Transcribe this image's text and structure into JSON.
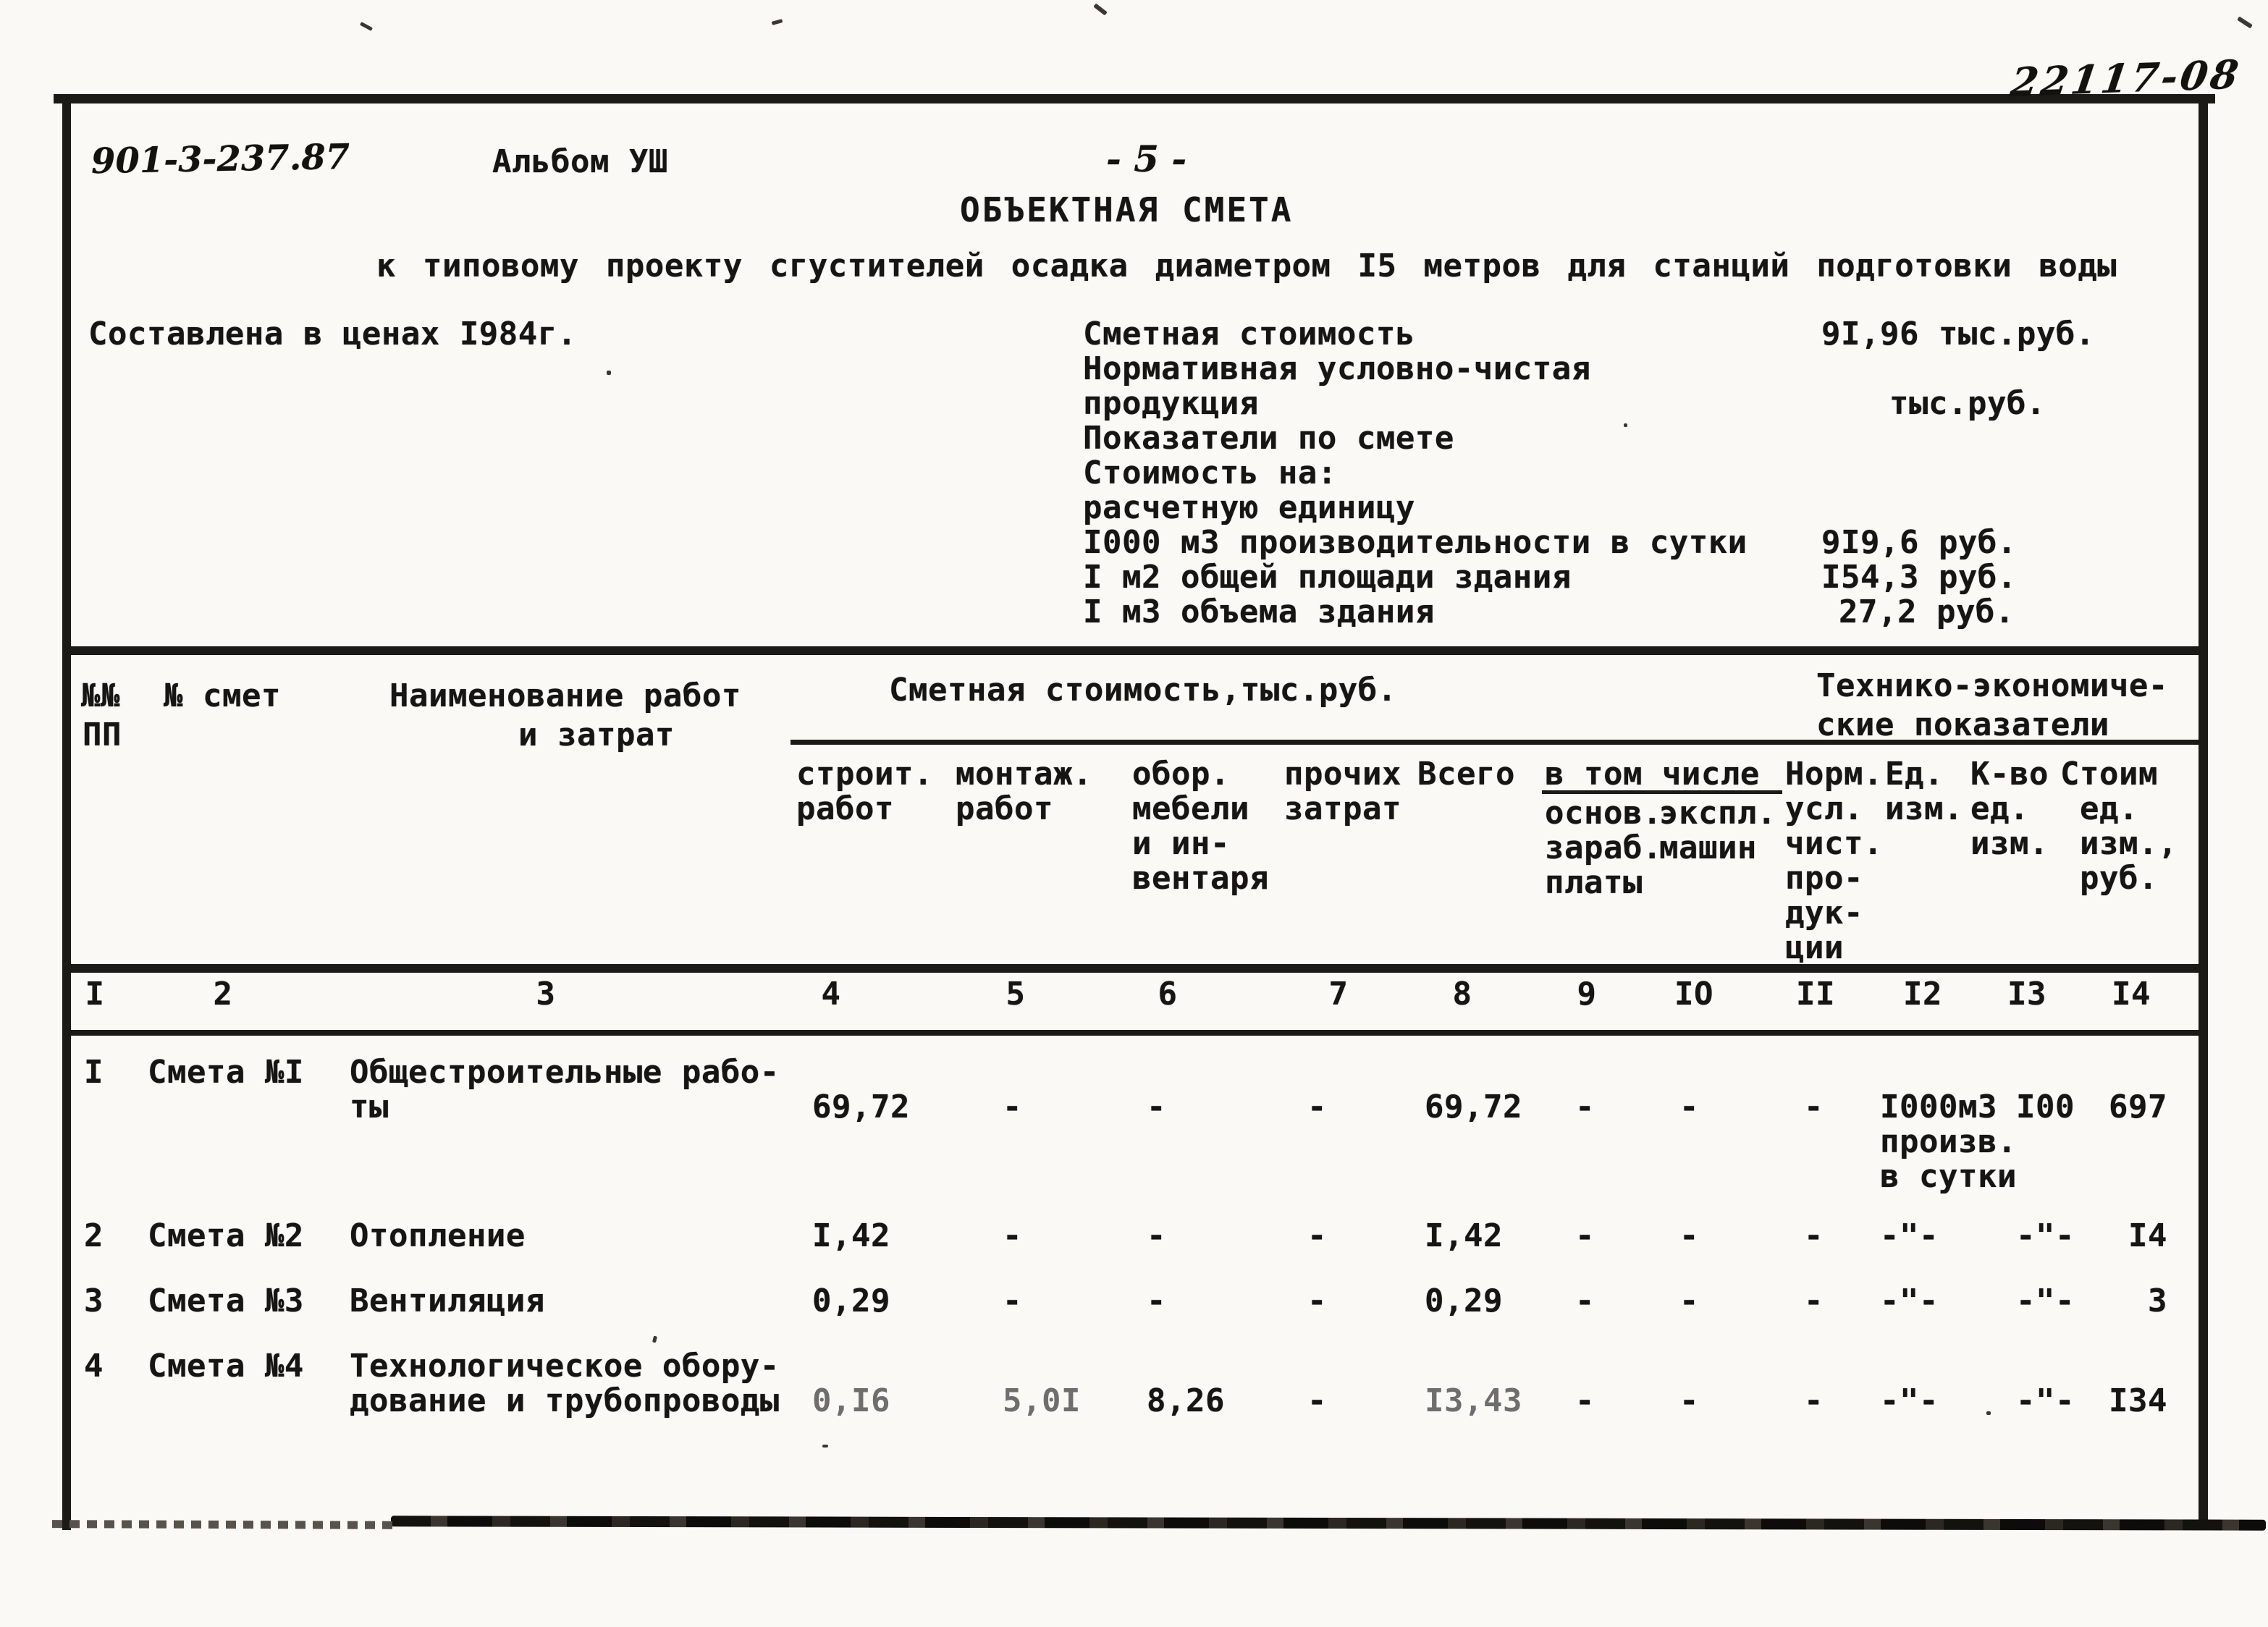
{
  "page": {
    "doc_number": "901-3-237.87",
    "album": "Альбом УШ",
    "page_number": "- 5 -",
    "stamp": "22117-08",
    "title": "ОБЪЕКТНАЯ СМЕТА",
    "subtitle": "к типовому проекту сгустителей осадка диаметром I5 метров для станций подготовки воды",
    "prices_note": "Составлена в ценах I984г."
  },
  "summary": {
    "items": [
      {
        "label": "Сметная стоимость",
        "value": "9I,96 тыс.руб."
      },
      {
        "label": "Нормативная условно-чистая",
        "value": ""
      },
      {
        "label": "продукция",
        "value": "тыс.руб."
      },
      {
        "label": "Показатели по смете",
        "value": ""
      },
      {
        "label": "Стоимость на:",
        "value": ""
      },
      {
        "label": "расчетную единицу",
        "value": ""
      },
      {
        "label": "I000 м3 производительности в сутки",
        "value": "9I9,6 руб."
      },
      {
        "label": "I м2 общей площади здания",
        "value": "I54,3 руб."
      },
      {
        "label": "I м3 объема здания",
        "value": "27,2 руб."
      }
    ]
  },
  "table": {
    "head": {
      "col1_line1": "№№",
      "col1_line2": "ПП",
      "col2": "№ смет",
      "col3_line1": "Наименование работ",
      "col3_line2": "и затрат",
      "group_cost": "Сметная стоимость,тыс.руб.",
      "group_tech_line1": "Технико-экономиче-",
      "group_tech_line2": "ские показатели",
      "sub": {
        "c4": "строит.\nработ",
        "c5": "монтаж.\nработ",
        "c6": "обор.\nмебели\nи ин-\nвентаря",
        "c7": "прочих\nзатрат",
        "c8": "Всего",
        "incl": "в том числе",
        "c9": "основ.\nзараб.\nплаты",
        "c10": "экспл.\nмашин",
        "c11": "Норм.\nусл.\nчист.\nпро-\nдук-\nции",
        "c12": "Ед.\nизм.",
        "c13": "К-во\nед.\nизм.",
        "c14": "Стоим\n ед.\n изм.,\n руб."
      },
      "col_numbers": [
        "I",
        "2",
        "3",
        "4",
        "5",
        "6",
        "7",
        "8",
        "9",
        "IO",
        "II",
        "I2",
        "I3",
        "I4"
      ]
    },
    "rows": [
      {
        "num": "I",
        "estimate": "Смета №I",
        "name": "Общестроительные рабо-\nты",
        "c4": "69,72",
        "c5": "-",
        "c6": "-",
        "c7": "-",
        "c8": "69,72",
        "c9": "-",
        "c10": "-",
        "c11": "-",
        "c12": "I000м3\nпроизв.\nв сутки",
        "c13": "I00",
        "c14": "697"
      },
      {
        "num": "2",
        "estimate": "Смета №2",
        "name": "Отопление",
        "c4": "I,42",
        "c5": "-",
        "c6": "-",
        "c7": "-",
        "c8": "I,42",
        "c9": "-",
        "c10": "-",
        "c11": "-",
        "c12": "-\"-",
        "c13": "-\"-",
        "c14": "I4"
      },
      {
        "num": "3",
        "estimate": "Смета №3",
        "name": "Вентиляция",
        "c4": "0,29",
        "c5": "-",
        "c6": "-",
        "c7": "-",
        "c8": "0,29",
        "c9": "-",
        "c10": "-",
        "c11": "-",
        "c12": "-\"-",
        "c13": "-\"-",
        "c14": "3"
      },
      {
        "num": "4",
        "estimate": "Смета №4",
        "name": "Технологическое обору-\nдование и трубопроводы",
        "c4": "0,I6",
        "c5": "5,0I",
        "c6": "8,26",
        "c7": "-",
        "c8": "I3,43",
        "c9": "-",
        "c10": "-",
        "c11": "-",
        "c12": "-\"-",
        "c13": "-\"-",
        "c14": "I34"
      }
    ]
  }
}
